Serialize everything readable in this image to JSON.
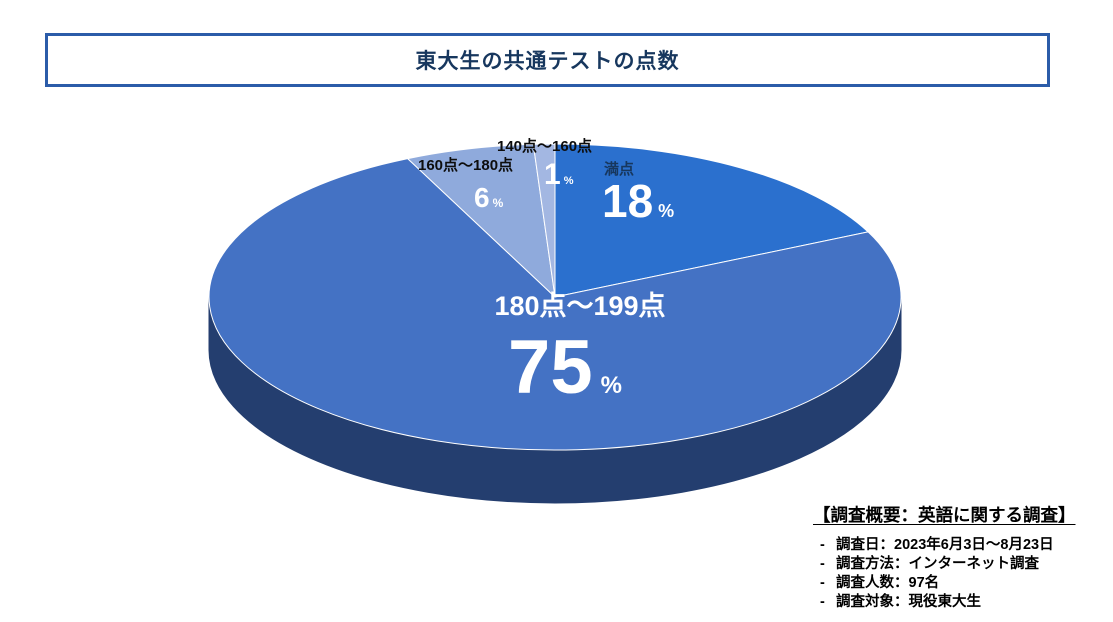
{
  "title": "東大生の共通テストの点数",
  "chart_data": {
    "type": "pie",
    "style": "3d",
    "title": "東大生の共通テストの点数",
    "unit": "%",
    "direction": "clockwise",
    "start_angle_deg": 0,
    "legend": "none",
    "depth_color": "#243E6F",
    "slices": [
      {
        "label": "満点",
        "value": 18,
        "color": "#2B70CE"
      },
      {
        "label": "180点〜199点",
        "value": 75,
        "color": "#4472C4"
      },
      {
        "label": "160点〜180点",
        "value": 6,
        "color": "#8FAADC"
      },
      {
        "label": "140点〜160点",
        "value": 1,
        "color": "#A3B7E2"
      }
    ]
  },
  "survey": {
    "heading": "【調査概要：英語に関する調査】",
    "bullet": "-",
    "items": [
      "調査日：2023年6月3日〜8月23日",
      "調査方法：インターネット調査",
      "調査人数：97名",
      "調査対象：現役東大生"
    ]
  }
}
